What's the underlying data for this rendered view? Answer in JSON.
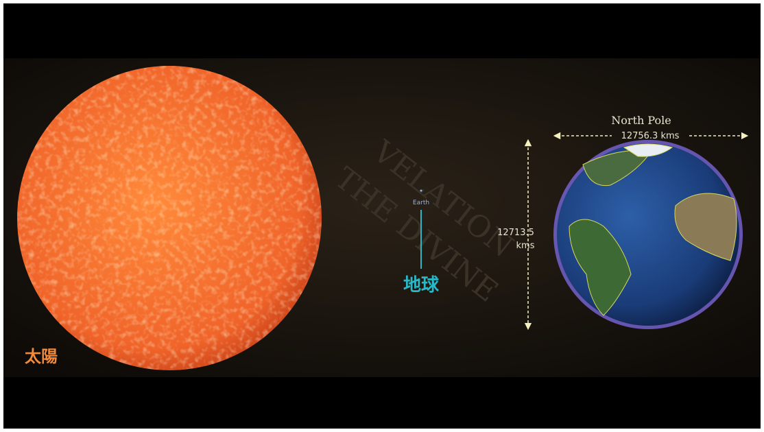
{
  "labels": {
    "sun": "太陽",
    "earth_small": "Earth",
    "earth_cn": "地球",
    "north_pole": "North Pole",
    "width": "12756.3 kms",
    "height_value": "12713.5",
    "height_unit": "kms"
  },
  "background_text": [
    "VELATION",
    "THE DIVINE"
  ]
}
